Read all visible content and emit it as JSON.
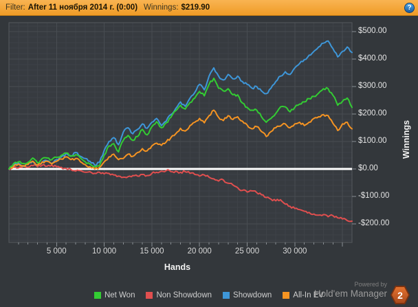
{
  "header": {
    "filter_label": "Filter:",
    "filter_value": "After 11 ноября 2014 г. (0:00)",
    "winnings_label": "Winnings:",
    "winnings_value": "$219.90",
    "help_icon": "?"
  },
  "footer": {
    "powered_by": "Powered by",
    "brand": "Hold'em Manager",
    "badge": "2"
  },
  "colors": {
    "topbar_top": "#f9b452",
    "topbar_bottom": "#ef9b26",
    "background": "#33373b",
    "plot_bg": "#373b40",
    "grid_minor": "#3e4247",
    "grid_major": "#484d52",
    "plot_border": "#55595e",
    "tick": "#8a8f94",
    "zero_line": "#ffffff",
    "net_won": "#33cc33",
    "non_showdown": "#e04f4f",
    "showdown": "#3e96d8",
    "all_in_ev": "#f69422",
    "badge_orange": "#c75c24",
    "help_blue": "#2f7fc1"
  },
  "chart_data": {
    "type": "line",
    "title": "",
    "xlabel": "Hands",
    "ylabel": "Winnings",
    "xlim": [
      0,
      36000
    ],
    "ylim": [
      -275,
      530
    ],
    "x_step": 500,
    "grid": true,
    "legend_position": "bottom",
    "x_ticks": [
      {
        "value": 5000,
        "label": "5 000"
      },
      {
        "value": 10000,
        "label": "10 000"
      },
      {
        "value": 15000,
        "label": "15 000"
      },
      {
        "value": 20000,
        "label": "20 000"
      },
      {
        "value": 25000,
        "label": "25 000"
      },
      {
        "value": 30000,
        "label": "30 000"
      }
    ],
    "y_ticks": [
      {
        "value": 500,
        "label": "$500.00"
      },
      {
        "value": 400,
        "label": "$400.00"
      },
      {
        "value": 300,
        "label": "$300.00"
      },
      {
        "value": 200,
        "label": "$200.00"
      },
      {
        "value": 100,
        "label": "$100.00"
      },
      {
        "value": 0,
        "label": "$0.00"
      },
      {
        "value": -100,
        "label": "-$100.00"
      },
      {
        "value": -200,
        "label": "-$200.00"
      }
    ],
    "series": [
      {
        "name": "Net Won",
        "color": "#33cc33",
        "values": [
          0,
          20,
          26,
          20,
          24,
          40,
          22,
          38,
          40,
          34,
          42,
          50,
          58,
          46,
          52,
          40,
          26,
          18,
          8,
          12,
          50,
          84,
          92,
          62,
          104,
          122,
          104,
          118,
          144,
          124,
          154,
          172,
          150,
          168,
          188,
          212,
          232,
          218,
          242,
          258,
          282,
          266,
          308,
          330,
          294,
          284,
          292,
          270,
          270,
          240,
          224,
          214,
          214,
          190,
          170,
          184,
          202,
          226,
          226,
          208,
          224,
          236,
          244,
          256,
          264,
          276,
          292,
          292,
          268,
          232,
          246,
          258,
          224
        ]
      },
      {
        "name": "Non Showdown",
        "color": "#e04f4f",
        "values": [
          0,
          6,
          4,
          10,
          6,
          12,
          8,
          14,
          10,
          14,
          8,
          6,
          2,
          -2,
          -8,
          -6,
          -12,
          -10,
          -16,
          -12,
          -18,
          -16,
          -22,
          -26,
          -30,
          -28,
          -24,
          -26,
          -20,
          -24,
          -16,
          -12,
          -8,
          -6,
          -10,
          -8,
          -12,
          -10,
          -16,
          -20,
          -26,
          -22,
          -30,
          -36,
          -44,
          -40,
          -52,
          -58,
          -68,
          -78,
          -84,
          -80,
          -86,
          -94,
          -104,
          -110,
          -116,
          -112,
          -128,
          -136,
          -144,
          -148,
          -154,
          -158,
          -164,
          -168,
          -166,
          -174,
          -170,
          -178,
          -182,
          -188,
          -190
        ]
      },
      {
        "name": "Showdown",
        "color": "#3e96d8",
        "values": [
          0,
          14,
          22,
          10,
          18,
          28,
          14,
          24,
          30,
          20,
          34,
          44,
          56,
          48,
          60,
          46,
          38,
          28,
          14,
          24,
          68,
          100,
          114,
          88,
          134,
          150,
          128,
          144,
          164,
          148,
          170,
          184,
          158,
          174,
          198,
          220,
          244,
          228,
          258,
          278,
          308,
          288,
          338,
          368,
          338,
          324,
          344,
          328,
          338,
          318,
          308,
          294,
          300,
          284,
          274,
          294,
          318,
          338,
          354,
          344,
          368,
          384,
          398,
          414,
          428,
          444,
          458,
          466,
          438,
          408,
          428,
          444,
          424
        ]
      },
      {
        "name": "All-In EV",
        "color": "#f69422",
        "values": [
          0,
          10,
          18,
          12,
          16,
          28,
          14,
          26,
          28,
          18,
          28,
          36,
          44,
          34,
          38,
          26,
          16,
          8,
          0,
          6,
          26,
          44,
          54,
          34,
          38,
          54,
          46,
          60,
          74,
          66,
          84,
          94,
          86,
          98,
          114,
          128,
          148,
          138,
          158,
          170,
          184,
          168,
          194,
          214,
          188,
          176,
          194,
          180,
          190,
          174,
          160,
          146,
          154,
          136,
          118,
          136,
          150,
          156,
          164,
          150,
          164,
          170,
          158,
          170,
          184,
          190,
          198,
          194,
          166,
          140,
          164,
          170,
          146
        ]
      }
    ],
    "draw_order": [
      "Non Showdown",
      "Showdown",
      "All-In EV",
      "Net Won"
    ]
  }
}
